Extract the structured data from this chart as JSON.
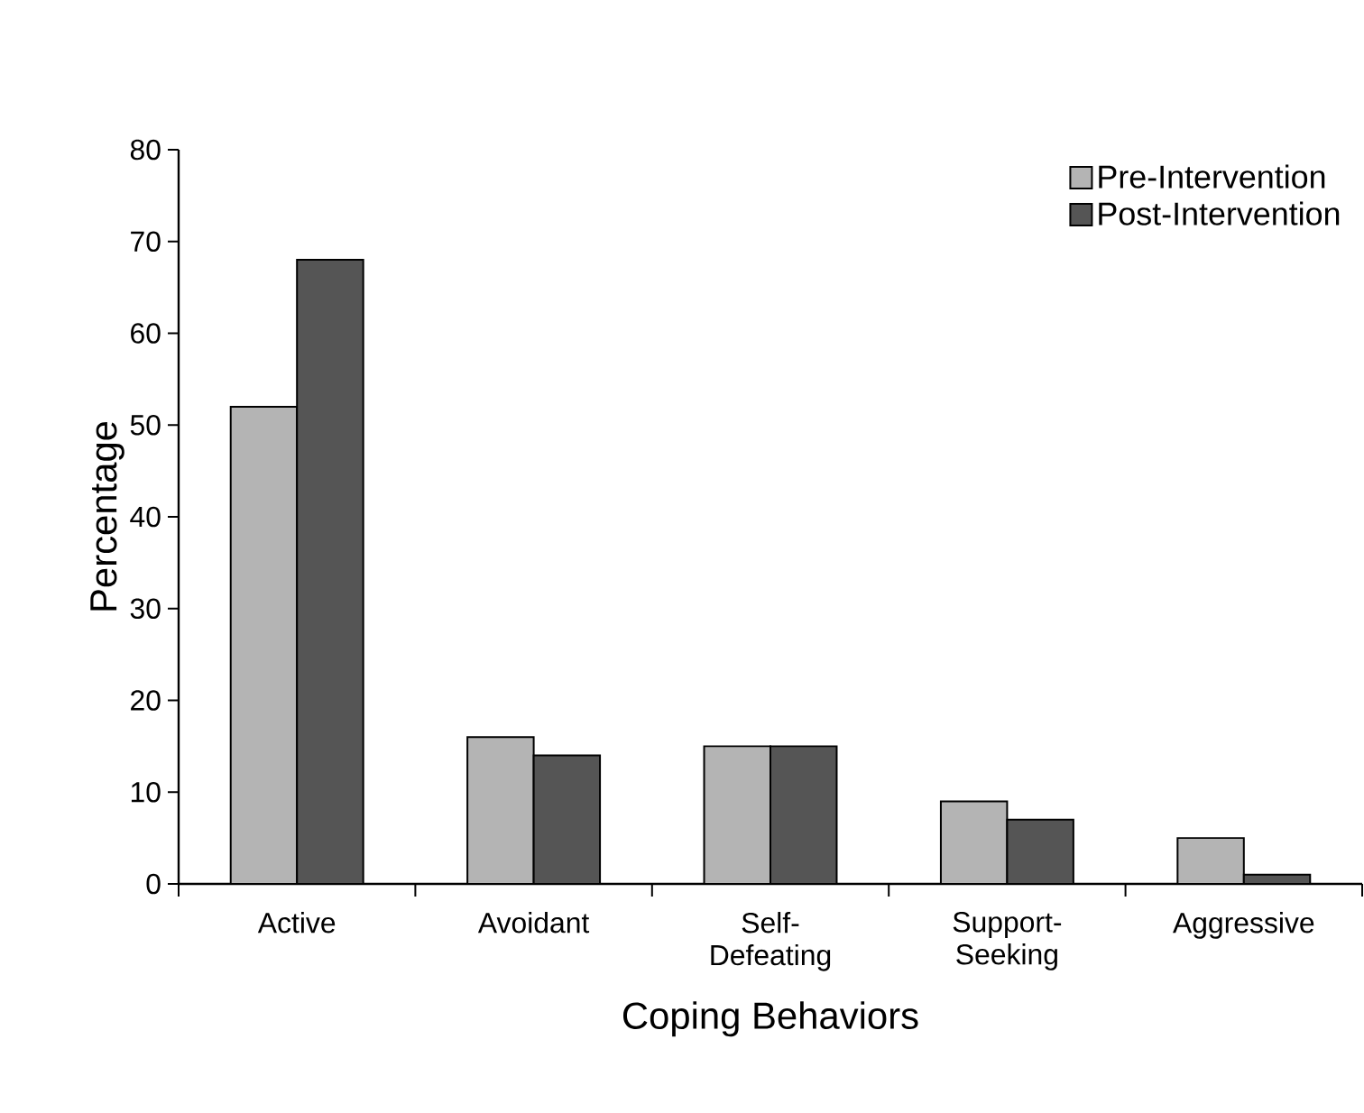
{
  "chart_data": {
    "type": "bar",
    "xlabel": "Coping Behaviors",
    "ylabel": "Percentage",
    "categories": [
      "Active",
      "Avoidant",
      "Self-Defeating",
      "Support-Seeking",
      "Aggressive"
    ],
    "series": [
      {
        "name": "Pre-Intervention",
        "color": "#b4b4b4",
        "values": [
          52,
          16,
          15,
          9,
          5
        ]
      },
      {
        "name": "Post-Intervention",
        "color": "#555555",
        "values": [
          68,
          14,
          15,
          7,
          1
        ]
      }
    ],
    "ylim": [
      0,
      80
    ],
    "yticks": [
      0,
      10,
      20,
      30,
      40,
      50,
      60,
      70,
      80
    ],
    "legend": "top right"
  }
}
